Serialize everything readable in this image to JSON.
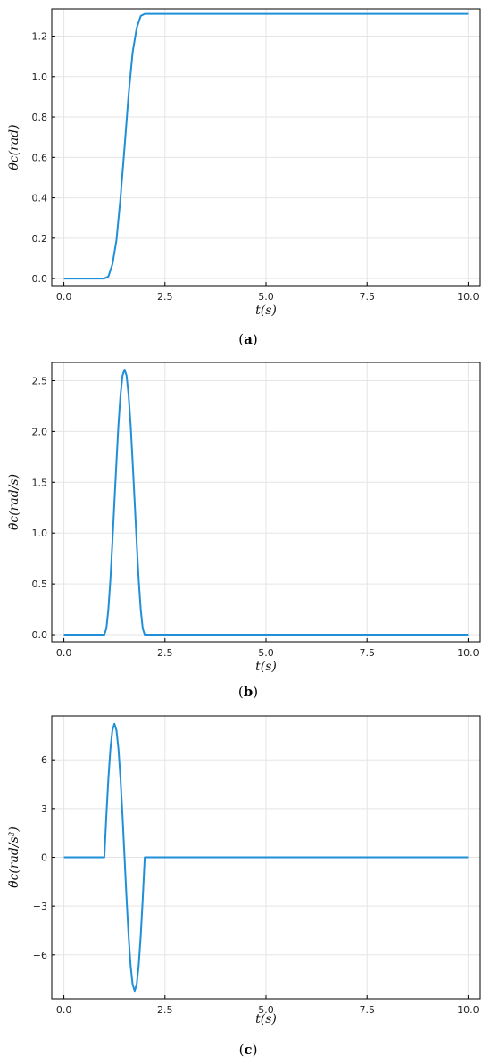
{
  "colors": {
    "series": "#1f8fd8",
    "grid": "#e5e5e5",
    "frame": "#000000"
  },
  "chart_data": [
    {
      "type": "line",
      "caption": {
        "open": "(",
        "letter": "a",
        "close": ")"
      },
      "xlabel": "t(s)",
      "ylabel": "θc(rad)",
      "xlim": [
        -0.3,
        10.3
      ],
      "ylim": [
        -0.035,
        1.335
      ],
      "xticks": [
        0.0,
        2.5,
        5.0,
        7.5,
        10.0
      ],
      "xtick_labels": [
        "0.0",
        "2.5",
        "5.0",
        "7.5",
        "10.0"
      ],
      "yticks": [
        0.0,
        0.2,
        0.4,
        0.6,
        0.8,
        1.0,
        1.2
      ],
      "ytick_labels": [
        "0.0",
        "0.2",
        "0.4",
        "0.6",
        "0.8",
        "1.0",
        "1.2"
      ],
      "grid": true,
      "series": [
        {
          "x": [
            0.0,
            0.5,
            1.0,
            1.1,
            1.2,
            1.3,
            1.4,
            1.5,
            1.6,
            1.7,
            1.8,
            1.9,
            2.0,
            3.0,
            4.0,
            5.0,
            6.0,
            7.0,
            8.0,
            9.0,
            10.0
          ],
          "y": [
            0.0,
            0.0,
            0.0,
            0.01,
            0.07,
            0.19,
            0.4,
            0.65,
            0.91,
            1.12,
            1.24,
            1.3,
            1.31,
            1.31,
            1.31,
            1.31,
            1.31,
            1.31,
            1.31,
            1.31,
            1.31
          ]
        }
      ]
    },
    {
      "type": "line",
      "caption": {
        "open": "(",
        "letter": "b",
        "close": ")"
      },
      "xlabel": "t(s)",
      "ylabel": "θ̇c(rad/s)",
      "xlim": [
        -0.3,
        10.3
      ],
      "ylim": [
        -0.07,
        2.68
      ],
      "xticks": [
        0.0,
        2.5,
        5.0,
        7.5,
        10.0
      ],
      "xtick_labels": [
        "0.0",
        "2.5",
        "5.0",
        "7.5",
        "10.0"
      ],
      "yticks": [
        0.0,
        0.5,
        1.0,
        1.5,
        2.0,
        2.5
      ],
      "ytick_labels": [
        "0.0",
        "0.5",
        "1.0",
        "1.5",
        "2.0",
        "2.5"
      ],
      "grid": true,
      "series": [
        {
          "x": [
            0.0,
            0.5,
            1.0,
            1.05,
            1.1,
            1.15,
            1.2,
            1.25,
            1.3,
            1.35,
            1.4,
            1.45,
            1.5,
            1.55,
            1.6,
            1.65,
            1.7,
            1.75,
            1.8,
            1.85,
            1.9,
            1.95,
            2.0,
            3.0,
            4.0,
            5.0,
            6.0,
            7.0,
            8.0,
            9.0,
            10.0
          ],
          "y": [
            0.0,
            0.0,
            0.0,
            0.06,
            0.25,
            0.54,
            0.91,
            1.31,
            1.7,
            2.07,
            2.36,
            2.55,
            2.61,
            2.55,
            2.36,
            2.07,
            1.7,
            1.31,
            0.91,
            0.54,
            0.25,
            0.06,
            0.0,
            0.0,
            0.0,
            0.0,
            0.0,
            0.0,
            0.0,
            0.0,
            0.0
          ]
        }
      ]
    },
    {
      "type": "line",
      "caption": {
        "open": "(",
        "letter": "c",
        "close": ")"
      },
      "xlabel": "t(s)",
      "ylabel": "θ̈c(rad/s²)",
      "xlim": [
        -0.3,
        10.3
      ],
      "ylim": [
        -8.7,
        8.7
      ],
      "xticks": [
        0.0,
        2.5,
        5.0,
        7.5,
        10.0
      ],
      "xtick_labels": [
        "0.0",
        "2.5",
        "5.0",
        "7.5",
        "10.0"
      ],
      "yticks": [
        -6,
        -3,
        0,
        3,
        6
      ],
      "ytick_labels": [
        "−6",
        "−3",
        "0",
        "3",
        "6"
      ],
      "grid": true,
      "series": [
        {
          "x": [
            0.0,
            0.5,
            1.0,
            1.05,
            1.1,
            1.15,
            1.2,
            1.25,
            1.3,
            1.35,
            1.4,
            1.45,
            1.5,
            1.55,
            1.6,
            1.65,
            1.7,
            1.75,
            1.8,
            1.85,
            1.9,
            1.95,
            2.0,
            3.0,
            4.0,
            5.0,
            6.0,
            7.0,
            8.0,
            9.0,
            10.0
          ],
          "y": [
            0.0,
            0.0,
            0.0,
            2.54,
            4.83,
            6.65,
            7.82,
            8.22,
            7.82,
            6.65,
            4.83,
            2.54,
            0.0,
            -2.54,
            -4.83,
            -6.65,
            -7.82,
            -8.22,
            -7.82,
            -6.65,
            -4.83,
            -2.54,
            0.0,
            0.0,
            0.0,
            0.0,
            0.0,
            0.0,
            0.0,
            0.0,
            0.0
          ]
        }
      ]
    }
  ]
}
